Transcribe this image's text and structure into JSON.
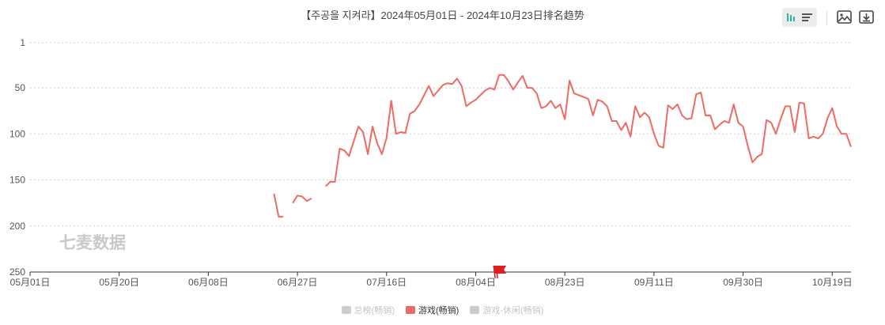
{
  "title": "【주공을 지켜라】2024年05月01日 - 2024年10月23日排名趋势",
  "watermark": "七麦数据",
  "toolbar": {
    "bar_view_icon": "bar-chart-icon",
    "list_view_icon": "list-icon",
    "image_icon": "image-icon",
    "download_icon": "download-icon"
  },
  "colors": {
    "line": "#ee6a64",
    "inactive": "#cccccc",
    "grid": "#cfcfcf",
    "axis": "#333333"
  },
  "chart_data": {
    "type": "line",
    "title": "【주공을 지켜라】2024年05月01日 - 2024年10月23日排名趋势",
    "y_inverted": true,
    "ylim": [
      1,
      250
    ],
    "y_ticks": [
      1,
      50,
      100,
      150,
      200,
      250
    ],
    "x_ticks": [
      "05月01日",
      "05月20日",
      "06月08日",
      "06月27日",
      "07月16日",
      "08月04日",
      "08月23日",
      "09月11日",
      "09月30日",
      "10月19日"
    ],
    "x_range": [
      "2024-05-01",
      "2024-10-23"
    ],
    "grid": "horizontal-dashed",
    "legend_position": "bottom-center",
    "legend": [
      {
        "name": "总榜(畅销)",
        "active": false
      },
      {
        "name": "游戏(畅销)",
        "active": true
      },
      {
        "name": "游戏-休闲(畅销)",
        "active": false
      }
    ],
    "series": [
      {
        "name": "游戏(畅销)",
        "segments": [
          [
            [
              "2024-06-22",
              165
            ],
            [
              "2024-06-23",
              190
            ],
            [
              "2024-06-24",
              190
            ]
          ],
          [
            [
              "2024-06-26",
              175
            ],
            [
              "2024-06-27",
              167
            ],
            [
              "2024-06-28",
              168
            ],
            [
              "2024-06-29",
              173
            ],
            [
              "2024-06-30",
              170
            ]
          ],
          [
            [
              "2024-07-03",
              157
            ],
            [
              "2024-07-04",
              152
            ],
            [
              "2024-07-05",
              152
            ],
            [
              "2024-07-06",
              116
            ],
            [
              "2024-07-07",
              118
            ],
            [
              "2024-07-08",
              124
            ],
            [
              "2024-07-09",
              108
            ],
            [
              "2024-07-10",
              92
            ],
            [
              "2024-07-11",
              98
            ],
            [
              "2024-07-12",
              122
            ],
            [
              "2024-07-13",
              92
            ],
            [
              "2024-07-14",
              110
            ],
            [
              "2024-07-15",
              122
            ],
            [
              "2024-07-16",
              104
            ],
            [
              "2024-07-17",
              64
            ],
            [
              "2024-07-18",
              100
            ],
            [
              "2024-07-19",
              98
            ],
            [
              "2024-07-20",
              99
            ],
            [
              "2024-07-21",
              78
            ],
            [
              "2024-07-22",
              75
            ],
            [
              "2024-07-23",
              68
            ],
            [
              "2024-07-24",
              58
            ],
            [
              "2024-07-25",
              48
            ],
            [
              "2024-07-26",
              59
            ],
            [
              "2024-07-27",
              53
            ],
            [
              "2024-07-28",
              47
            ],
            [
              "2024-07-29",
              45
            ],
            [
              "2024-07-30",
              46
            ],
            [
              "2024-07-31",
              40
            ],
            [
              "2024-08-01",
              48
            ],
            [
              "2024-08-02",
              70
            ],
            [
              "2024-08-03",
              66
            ],
            [
              "2024-08-04",
              63
            ],
            [
              "2024-08-05",
              58
            ],
            [
              "2024-08-06",
              53
            ],
            [
              "2024-08-07",
              50
            ],
            [
              "2024-08-08",
              52
            ],
            [
              "2024-08-09",
              36
            ],
            [
              "2024-08-10",
              36
            ],
            [
              "2024-08-11",
              43
            ],
            [
              "2024-08-12",
              52
            ],
            [
              "2024-08-13",
              44
            ],
            [
              "2024-08-14",
              37
            ],
            [
              "2024-08-15",
              50
            ],
            [
              "2024-08-16",
              50
            ],
            [
              "2024-08-17",
              56
            ],
            [
              "2024-08-18",
              72
            ],
            [
              "2024-08-19",
              70
            ],
            [
              "2024-08-20",
              64
            ],
            [
              "2024-08-21",
              72
            ],
            [
              "2024-08-22",
              68
            ],
            [
              "2024-08-23",
              84
            ],
            [
              "2024-08-24",
              42
            ],
            [
              "2024-08-25",
              56
            ],
            [
              "2024-08-26",
              58
            ],
            [
              "2024-08-27",
              60
            ],
            [
              "2024-08-28",
              62
            ],
            [
              "2024-08-29",
              80
            ],
            [
              "2024-08-30",
              63
            ],
            [
              "2024-08-31",
              65
            ],
            [
              "2024-09-01",
              70
            ],
            [
              "2024-09-02",
              86
            ],
            [
              "2024-09-03",
              86
            ],
            [
              "2024-09-04",
              96
            ],
            [
              "2024-09-05",
              88
            ],
            [
              "2024-09-06",
              103
            ],
            [
              "2024-09-07",
              70
            ],
            [
              "2024-09-08",
              82
            ],
            [
              "2024-09-09",
              77
            ],
            [
              "2024-09-10",
              82
            ],
            [
              "2024-09-11",
              100
            ],
            [
              "2024-09-12",
              113
            ],
            [
              "2024-09-13",
              115
            ],
            [
              "2024-09-14",
              69
            ],
            [
              "2024-09-15",
              73
            ],
            [
              "2024-09-16",
              68
            ],
            [
              "2024-09-17",
              80
            ],
            [
              "2024-09-18",
              84
            ],
            [
              "2024-09-19",
              83
            ],
            [
              "2024-09-20",
              57
            ],
            [
              "2024-09-21",
              55
            ],
            [
              "2024-09-22",
              80
            ],
            [
              "2024-09-23",
              80
            ],
            [
              "2024-09-24",
              95
            ],
            [
              "2024-09-25",
              90
            ],
            [
              "2024-09-26",
              86
            ],
            [
              "2024-09-27",
              88
            ],
            [
              "2024-09-28",
              68
            ],
            [
              "2024-09-29",
              88
            ],
            [
              "2024-09-30",
              92
            ],
            [
              "2024-10-01",
              113
            ],
            [
              "2024-10-02",
              131
            ],
            [
              "2024-10-03",
              125
            ],
            [
              "2024-10-04",
              122
            ],
            [
              "2024-10-05",
              85
            ],
            [
              "2024-10-06",
              88
            ],
            [
              "2024-10-07",
              100
            ],
            [
              "2024-10-08",
              84
            ],
            [
              "2024-10-09",
              70
            ],
            [
              "2024-10-10",
              70
            ],
            [
              "2024-10-11",
              98
            ],
            [
              "2024-10-12",
              66
            ],
            [
              "2024-10-13",
              67
            ],
            [
              "2024-10-14",
              105
            ],
            [
              "2024-10-15",
              103
            ],
            [
              "2024-10-16",
              105
            ],
            [
              "2024-10-17",
              100
            ],
            [
              "2024-10-18",
              83
            ],
            [
              "2024-10-19",
              72
            ],
            [
              "2024-10-20",
              92
            ],
            [
              "2024-10-21",
              100
            ],
            [
              "2024-10-22",
              100
            ],
            [
              "2024-10-23",
              114
            ]
          ]
        ]
      }
    ],
    "markers": [
      {
        "type": "flag",
        "date": "2024-08-09"
      }
    ]
  }
}
